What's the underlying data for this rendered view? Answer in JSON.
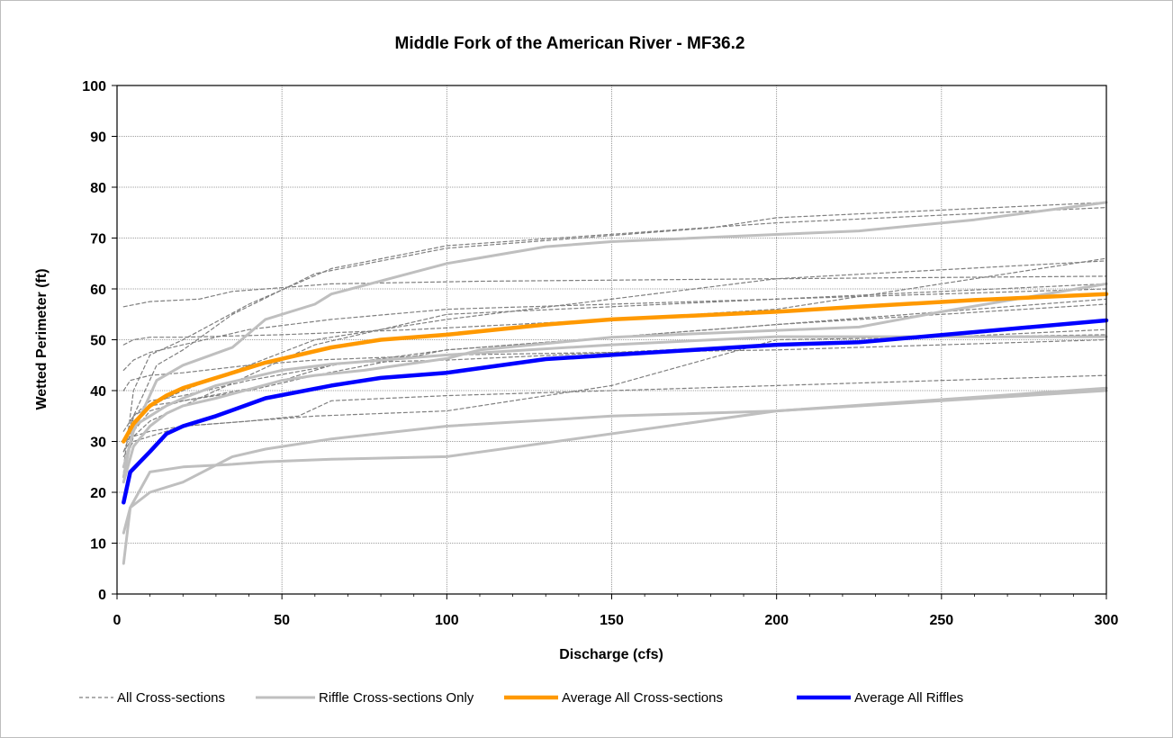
{
  "chart_data": {
    "type": "line",
    "title": "Middle Fork of the American River - MF36.2",
    "xlabel": "Discharge (cfs)",
    "ylabel": "Wetted Perimeter (ft)",
    "xlim": [
      0,
      300
    ],
    "ylim": [
      0,
      100
    ],
    "x_ticks": [
      0,
      50,
      100,
      150,
      200,
      250,
      300
    ],
    "y_ticks": [
      0,
      10,
      20,
      30,
      40,
      50,
      60,
      70,
      80,
      90,
      100
    ],
    "grid": true,
    "legend_position": "bottom",
    "colors": {
      "all_cross_sections": "#7f7f7f",
      "riffle_cross_sections": "#bfbfbf",
      "average_all": "#ff9900",
      "average_riffles": "#0000ff",
      "grid": "#808080"
    },
    "legend": [
      {
        "label": "All Cross-sections",
        "style": "dashed",
        "color": "#7f7f7f"
      },
      {
        "label": "Riffle Cross-sections Only",
        "style": "solid",
        "color": "#bfbfbf"
      },
      {
        "label": "Average All Cross-sections",
        "style": "solid",
        "color": "#ff9900"
      },
      {
        "label": "Average All Riffles",
        "style": "solid",
        "color": "#0000ff"
      }
    ],
    "series": [
      {
        "group": "all",
        "x": [
          2,
          10,
          25,
          35,
          65,
          110,
          200,
          300
        ],
        "y": [
          56.5,
          57.5,
          58,
          59.5,
          61,
          61.5,
          62,
          62.5
        ]
      },
      {
        "group": "all",
        "x": [
          2,
          5,
          12,
          20,
          35,
          60,
          100,
          180,
          200,
          300
        ],
        "y": [
          23,
          35,
          45,
          48,
          55,
          63,
          68,
          72,
          74,
          77
        ]
      },
      {
        "group": "all",
        "x": [
          2,
          5,
          10,
          20,
          40,
          65,
          100,
          200,
          300
        ],
        "y": [
          25,
          40,
          47,
          50,
          57,
          64,
          68.5,
          73,
          76
        ]
      },
      {
        "group": "all",
        "x": [
          2,
          5,
          10,
          20,
          50,
          90,
          150,
          200,
          300
        ],
        "y": [
          49,
          50,
          50.5,
          50.5,
          51,
          52,
          54,
          56,
          66
        ]
      },
      {
        "group": "all",
        "x": [
          2,
          5,
          10,
          20,
          40,
          65,
          100,
          200,
          300
        ],
        "y": [
          44,
          46,
          47.5,
          49,
          52,
          54,
          56,
          58,
          61
        ]
      },
      {
        "group": "all",
        "x": [
          2,
          4,
          10,
          20,
          40,
          60,
          100,
          200,
          300
        ],
        "y": [
          40,
          42,
          43,
          43.5,
          45,
          46,
          47,
          48,
          50
        ]
      },
      {
        "group": "all",
        "x": [
          2,
          5,
          10,
          20,
          40,
          60,
          100,
          150,
          200,
          300
        ],
        "y": [
          28,
          31,
          32,
          33,
          34,
          35,
          36,
          41,
          50,
          51
        ]
      },
      {
        "group": "all",
        "x": [
          2,
          5,
          10,
          20,
          40,
          55,
          65,
          100,
          200,
          300
        ],
        "y": [
          27,
          30,
          31,
          33,
          34,
          35,
          38,
          39,
          41,
          43
        ]
      },
      {
        "group": "all",
        "x": [
          2,
          5,
          10,
          20,
          45,
          65,
          100,
          200,
          300
        ],
        "y": [
          25,
          32,
          36,
          38,
          41,
          45,
          48,
          53,
          57
        ]
      },
      {
        "group": "all",
        "x": [
          2,
          5,
          10,
          20,
          40,
          70,
          100,
          200,
          300
        ],
        "y": [
          32,
          35,
          38,
          39,
          42,
          45.5,
          46,
          49,
          52
        ]
      },
      {
        "group": "all",
        "x": [
          2,
          5,
          10,
          20,
          40,
          60,
          100,
          200,
          300
        ],
        "y": [
          28,
          33,
          37,
          40,
          45,
          50,
          54,
          62,
          65.5
        ]
      },
      {
        "group": "all",
        "x": [
          2,
          5,
          10,
          20,
          40,
          60,
          100,
          200,
          300
        ],
        "y": [
          30,
          35,
          37,
          38,
          40,
          43,
          48,
          53,
          58
        ]
      },
      {
        "group": "all",
        "x": [
          2,
          5,
          10,
          20,
          40,
          60,
          100,
          200,
          300
        ],
        "y": [
          24,
          31,
          34,
          37,
          43,
          49,
          55,
          58,
          60
        ]
      },
      {
        "group": "riffle",
        "x": [
          2,
          5,
          12,
          20,
          35,
          45,
          60,
          65,
          100,
          130,
          150,
          200,
          225,
          260,
          300
        ],
        "y": [
          25,
          32,
          42,
          45,
          48.5,
          54,
          57,
          59,
          65,
          68.3,
          69.3,
          70.7,
          71.4,
          73.6,
          77
        ]
      },
      {
        "group": "riffle",
        "x": [
          2,
          5,
          10,
          15,
          20,
          30,
          50,
          65,
          100,
          150,
          200,
          300
        ],
        "y": [
          23,
          33,
          35,
          37,
          38.5,
          41,
          44,
          45.2,
          47,
          49,
          50.6,
          50.6
        ]
      },
      {
        "group": "riffle",
        "x": [
          2,
          5,
          10,
          15,
          20,
          30,
          50,
          60,
          75,
          100,
          110,
          150,
          225,
          250,
          300
        ],
        "y": [
          22,
          29,
          33,
          35.5,
          37,
          38.5,
          42,
          43,
          44,
          46.3,
          48,
          50.5,
          52.5,
          55.5,
          61
        ]
      },
      {
        "group": "riffle",
        "x": [
          2,
          4,
          10,
          20,
          35,
          45,
          65,
          100,
          200,
          300
        ],
        "y": [
          12,
          17,
          24,
          25,
          25.5,
          26,
          26.5,
          27,
          36,
          40.5
        ]
      },
      {
        "group": "riffle",
        "x": [
          2,
          4,
          10,
          20,
          35,
          45,
          65,
          100,
          150,
          200,
          250,
          300
        ],
        "y": [
          6,
          17,
          20,
          22,
          27,
          28.5,
          30.5,
          33,
          35,
          36,
          38,
          40
        ]
      },
      {
        "group": "avg_all",
        "x": [
          2,
          5,
          10,
          15,
          20,
          30,
          45,
          65,
          80,
          100,
          130,
          150,
          200,
          225,
          260,
          300
        ],
        "y": [
          30,
          33.5,
          37,
          39,
          40.5,
          42.5,
          45.5,
          48.5,
          50,
          51,
          53,
          54,
          55.5,
          56.5,
          57.8,
          59
        ]
      },
      {
        "group": "avg_riffles",
        "x": [
          2,
          4,
          10,
          15,
          20,
          30,
          45,
          65,
          80,
          100,
          130,
          150,
          200,
          225,
          260,
          300
        ],
        "y": [
          18,
          24,
          28,
          31.5,
          33,
          35,
          38.5,
          41,
          42.5,
          43.5,
          46.2,
          47,
          49,
          49.5,
          51.5,
          53.8
        ]
      }
    ]
  }
}
